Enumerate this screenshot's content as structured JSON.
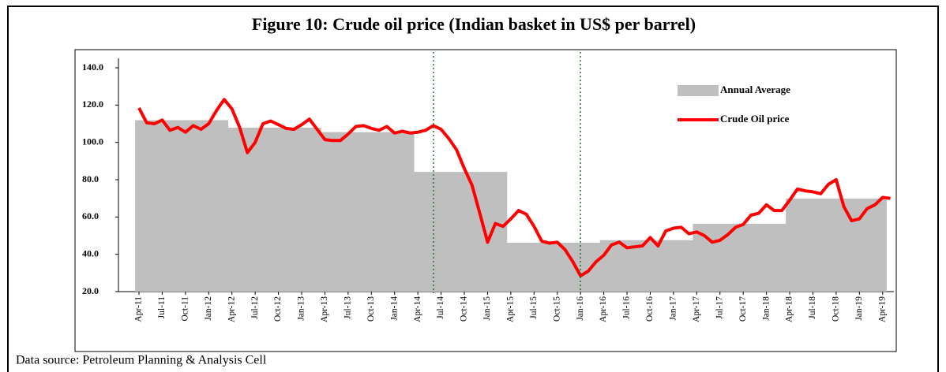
{
  "chart_data": {
    "type": "step-area-line",
    "title": "Figure 10: Crude oil price (Indian basket in US$ per barrel)",
    "source": "Data source: Petroleum Planning & Analysis Cell",
    "categories": [
      "Apr-11",
      null,
      null,
      "Jul-11",
      null,
      null,
      "Oct-11",
      null,
      null,
      "Jan-12",
      null,
      null,
      "Apr-12",
      null,
      null,
      "Jul-12",
      null,
      null,
      "Oct-12",
      null,
      null,
      "Jan-13",
      null,
      null,
      "Apr-13",
      null,
      null,
      "Jul-13",
      null,
      null,
      "Oct-13",
      null,
      null,
      "Jan-14",
      null,
      null,
      "Apr-14",
      null,
      null,
      "Jul-14",
      null,
      null,
      "Oct-14",
      null,
      null,
      "Jan-15",
      null,
      null,
      "Apr-15",
      null,
      null,
      "Jul-15",
      null,
      null,
      "Oct-15",
      null,
      null,
      "Jan-16",
      null,
      null,
      "Apr-16",
      null,
      null,
      "Jul-16",
      null,
      null,
      "Oct-16",
      null,
      null,
      "Jan-17",
      null,
      null,
      "Apr-17",
      null,
      null,
      "Jul-17",
      null,
      null,
      "Oct-17",
      null,
      null,
      "Jan-18",
      null,
      null,
      "Apr-18",
      null,
      null,
      "Jul-18",
      null,
      null,
      "Oct-18",
      null,
      null,
      "Jan-19",
      null,
      null,
      "Apr-19",
      null
    ],
    "series": [
      {
        "name": "Annual Average",
        "color": "#bfbfbf",
        "kind": "area",
        "values": [
          111.9,
          111.9,
          111.9,
          111.9,
          111.9,
          111.9,
          111.9,
          111.9,
          111.9,
          111.9,
          111.9,
          111.9,
          107.9,
          107.9,
          107.9,
          107.9,
          107.9,
          107.9,
          107.9,
          107.9,
          107.9,
          107.9,
          107.9,
          107.9,
          105.5,
          105.5,
          105.5,
          105.5,
          105.5,
          105.5,
          105.5,
          105.5,
          105.5,
          105.5,
          105.5,
          105.5,
          84.2,
          84.2,
          84.2,
          84.2,
          84.2,
          84.2,
          84.2,
          84.2,
          84.2,
          84.2,
          84.2,
          84.2,
          46.2,
          46.2,
          46.2,
          46.2,
          46.2,
          46.2,
          46.2,
          46.2,
          46.2,
          46.2,
          46.2,
          46.2,
          47.6,
          47.6,
          47.6,
          47.6,
          47.6,
          47.6,
          47.6,
          47.6,
          47.6,
          47.6,
          47.6,
          47.6,
          56.4,
          56.4,
          56.4,
          56.4,
          56.4,
          56.4,
          56.4,
          56.4,
          56.4,
          56.4,
          56.4,
          56.4,
          69.9,
          69.9,
          69.9,
          69.9,
          69.9,
          69.9,
          69.9,
          69.9,
          69.9,
          69.9,
          69.9,
          69.9,
          69.9,
          null
        ]
      },
      {
        "name": "Crude Oil price",
        "color": "#ff0000",
        "kind": "line",
        "values": [
          118.5,
          110.5,
          110,
          112,
          106.5,
          108,
          105.5,
          109,
          107,
          110,
          117,
          123,
          118,
          108,
          94.5,
          100,
          110,
          111.5,
          109.5,
          107.5,
          107,
          109.5,
          112.5,
          107,
          101.5,
          101,
          101,
          104.5,
          108.5,
          109,
          107.5,
          106.5,
          108.5,
          105,
          106,
          105,
          105.5,
          106.5,
          109,
          107,
          102,
          96,
          86,
          77,
          62,
          46.5,
          56.5,
          55,
          59,
          63.5,
          61.5,
          55,
          47,
          46,
          46.5,
          42.5,
          36,
          28.5,
          31,
          36,
          39.5,
          45,
          46.5,
          43.5,
          44,
          44.5,
          49,
          44.5,
          52.5,
          54,
          54.5,
          51,
          52,
          50,
          46.5,
          47.5,
          50.5,
          54.5,
          56,
          61,
          62,
          66.5,
          63.5,
          63.5,
          69,
          75,
          74,
          73.5,
          72.5,
          77.5,
          80,
          65.5,
          58,
          59,
          64.5,
          66.5,
          70.5,
          70
        ]
      }
    ],
    "ylim": [
      20,
      140
    ],
    "yticks": [
      {
        "value": 20,
        "label": "20.0"
      },
      {
        "value": 40,
        "label": "40.0"
      },
      {
        "value": 60,
        "label": "60.0"
      },
      {
        "value": 80,
        "label": "80.0"
      },
      {
        "value": 100,
        "label": "100.0"
      },
      {
        "value": 120,
        "label": "120.0"
      },
      {
        "value": 140,
        "label": "140.0"
      }
    ],
    "legend": "upper right"
  }
}
